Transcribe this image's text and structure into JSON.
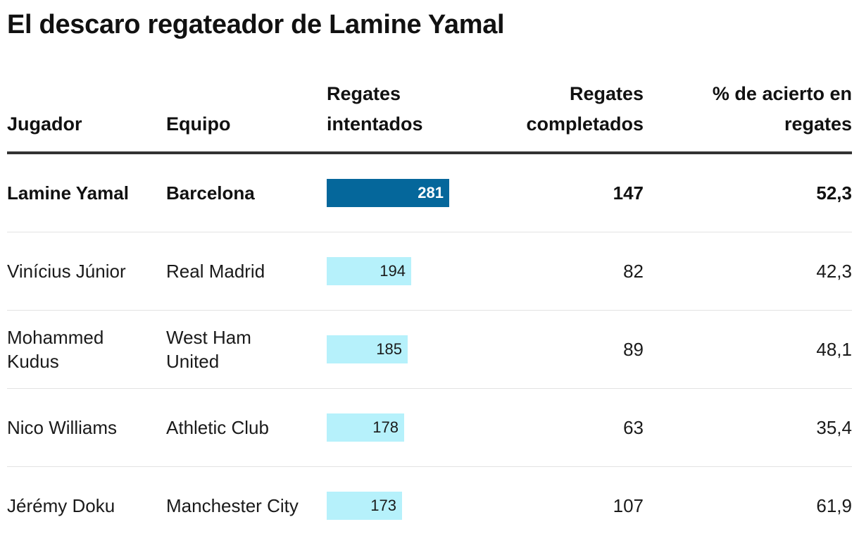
{
  "title": "El descaro regateador de Lamine Yamal",
  "columns": {
    "player": "Jugador",
    "team": "Equipo",
    "attempted": "Regates intentados",
    "completed": "Regates completados",
    "pct": "% de acierto en regates"
  },
  "colors": {
    "highlight_bar": "#05679b",
    "bar": "#b6f1fb",
    "header_rule": "#333333",
    "row_divider": "#e3e3e3"
  },
  "chart_data": {
    "type": "table",
    "title": "El descaro regateador de Lamine Yamal",
    "bar_column": "Regates intentados",
    "bar_max": 281,
    "rows": [
      {
        "player": "Lamine Yamal",
        "team": "Barcelona",
        "attempted": 281,
        "completed": "147",
        "pct": "52,3",
        "highlight": true
      },
      {
        "player": "Vinícius Júnior",
        "team": "Real Madrid",
        "attempted": 194,
        "completed": "82",
        "pct": "42,3",
        "highlight": false
      },
      {
        "player": "Mohammed Kudus",
        "team": "West Ham United",
        "attempted": 185,
        "completed": "89",
        "pct": "48,1",
        "highlight": false
      },
      {
        "player": "Nico Williams",
        "team": "Athletic Club",
        "attempted": 178,
        "completed": "63",
        "pct": "35,4",
        "highlight": false
      },
      {
        "player": "Jérémy Doku",
        "team": "Manchester City",
        "attempted": 173,
        "completed": "107",
        "pct": "61,9",
        "highlight": false
      }
    ]
  }
}
